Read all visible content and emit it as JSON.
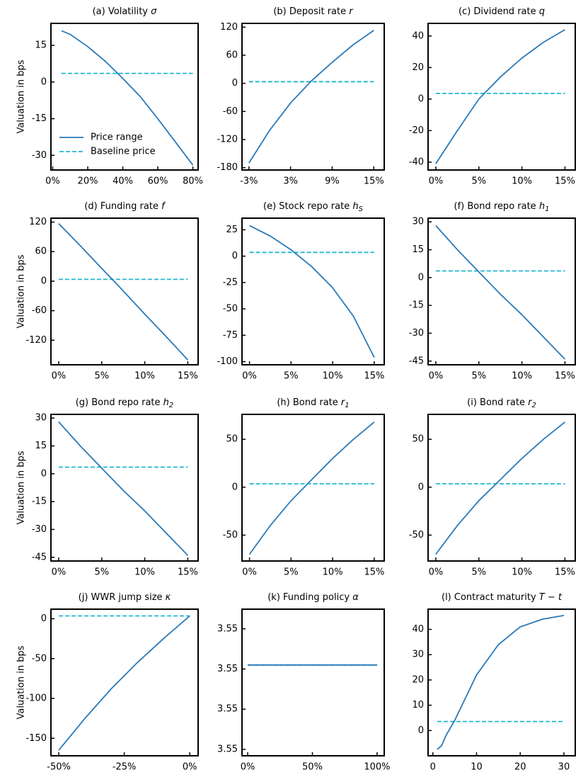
{
  "chart_data": [
    {
      "type": "line",
      "title": "(a) Volatility",
      "symbol": "σ",
      "ylabel": "Valuation in bps",
      "legend": "lower left",
      "x": [
        5,
        10,
        20,
        30,
        40,
        50,
        60,
        70,
        80
      ],
      "xlim": [
        -1,
        83
      ],
      "xticks": [
        {
          "value": 0,
          "label": "0%"
        },
        {
          "value": 20,
          "label": "20%"
        },
        {
          "value": 40,
          "label": "40%"
        },
        {
          "value": 60,
          "label": "60%"
        },
        {
          "value": 80,
          "label": "80%"
        }
      ],
      "ylim": [
        -36,
        24
      ],
      "yticks": [
        15,
        0,
        -15,
        -30
      ],
      "series": [
        {
          "name": "Price range",
          "color": "#2a7ab9",
          "dashed": false,
          "values": [
            21,
            19.5,
            14.5,
            8.5,
            1.5,
            -6,
            -15,
            -24.5,
            -34
          ]
        },
        {
          "name": "Baseline price",
          "color": "#1fb8cf",
          "dashed": true,
          "values": [
            3.55,
            3.55,
            3.55,
            3.55,
            3.55,
            3.55,
            3.55,
            3.55,
            3.55
          ]
        }
      ]
    },
    {
      "type": "line",
      "title": "(b) Deposit rate",
      "symbol": "r",
      "x": [
        -3,
        0,
        3,
        6,
        9,
        12,
        15
      ],
      "xlim": [
        -4,
        16.5
      ],
      "xticks": [
        {
          "value": -3,
          "label": "-3%"
        },
        {
          "value": 3,
          "label": "3%"
        },
        {
          "value": 9,
          "label": "9%"
        },
        {
          "value": 15,
          "label": "15%"
        }
      ],
      "ylim": [
        -185,
        128
      ],
      "yticks": [
        120,
        60,
        0,
        -60,
        -120,
        -180
      ],
      "series": [
        {
          "name": "Price range",
          "color": "#2a7ab9",
          "dashed": false,
          "values": [
            -170,
            -100,
            -42,
            5,
            45,
            82,
            113
          ]
        },
        {
          "name": "Baseline price",
          "color": "#1fb8cf",
          "dashed": true,
          "values": [
            3.55,
            3.55,
            3.55,
            3.55,
            3.55,
            3.55,
            3.55
          ]
        }
      ]
    },
    {
      "type": "line",
      "title": "(c) Dividend rate",
      "symbol": "q",
      "x": [
        0,
        2.5,
        5,
        7.5,
        10,
        12.5,
        15
      ],
      "xlim": [
        -0.9,
        16.2
      ],
      "xticks": [
        {
          "value": 0,
          "label": "0%"
        },
        {
          "value": 5,
          "label": "5%"
        },
        {
          "value": 10,
          "label": "10%"
        },
        {
          "value": 15,
          "label": "15%"
        }
      ],
      "ylim": [
        -45,
        48
      ],
      "yticks": [
        40,
        20,
        0,
        -20,
        -40
      ],
      "series": [
        {
          "name": "Price range",
          "color": "#2a7ab9",
          "dashed": false,
          "values": [
            -41,
            -20,
            0,
            14,
            26,
            36,
            44
          ]
        },
        {
          "name": "Baseline price",
          "color": "#1fb8cf",
          "dashed": true,
          "values": [
            3.55,
            3.55,
            3.55,
            3.55,
            3.55,
            3.55,
            3.55
          ]
        }
      ]
    },
    {
      "type": "line",
      "title": "(d) Funding rate",
      "symbol": "f",
      "ylabel": "Valuation in bps",
      "x": [
        0,
        2.5,
        5,
        7.5,
        10,
        12.5,
        15
      ],
      "xlim": [
        -0.9,
        16.2
      ],
      "xticks": [
        {
          "value": 0,
          "label": "0%"
        },
        {
          "value": 5,
          "label": "5%"
        },
        {
          "value": 10,
          "label": "10%"
        },
        {
          "value": 15,
          "label": "15%"
        }
      ],
      "ylim": [
        -170,
        128
      ],
      "yticks": [
        120,
        60,
        0,
        -60,
        -120
      ],
      "series": [
        {
          "name": "Price range",
          "color": "#2a7ab9",
          "dashed": false,
          "values": [
            117,
            72,
            26,
            -20,
            -67,
            -113,
            -160
          ]
        },
        {
          "name": "Baseline price",
          "color": "#1fb8cf",
          "dashed": true,
          "values": [
            3.55,
            3.55,
            3.55,
            3.55,
            3.55,
            3.55,
            3.55
          ]
        }
      ]
    },
    {
      "type": "line",
      "title": "(e) Stock repo rate",
      "symbol": "h",
      "symbol_sub": "S",
      "x": [
        0,
        2.5,
        5,
        7.5,
        10,
        12.5,
        15
      ],
      "xlim": [
        -0.9,
        16.2
      ],
      "xticks": [
        {
          "value": 0,
          "label": "0%"
        },
        {
          "value": 5,
          "label": "5%"
        },
        {
          "value": 10,
          "label": "10%"
        },
        {
          "value": 15,
          "label": "15%"
        }
      ],
      "ylim": [
        -103,
        36
      ],
      "yticks": [
        25,
        0,
        -25,
        -50,
        -75,
        -100
      ],
      "series": [
        {
          "name": "Price range",
          "color": "#2a7ab9",
          "dashed": false,
          "values": [
            29,
            19,
            6,
            -10,
            -30,
            -57,
            -96
          ]
        },
        {
          "name": "Baseline price",
          "color": "#1fb8cf",
          "dashed": true,
          "values": [
            3.55,
            3.55,
            3.55,
            3.55,
            3.55,
            3.55,
            3.55
          ]
        }
      ]
    },
    {
      "type": "line",
      "title": "(f) Bond repo rate",
      "symbol": "h",
      "symbol_sub": "1",
      "x": [
        0,
        2.5,
        5,
        7.5,
        10,
        12.5,
        15
      ],
      "xlim": [
        -0.9,
        16.2
      ],
      "xticks": [
        {
          "value": 0,
          "label": "0%"
        },
        {
          "value": 5,
          "label": "5%"
        },
        {
          "value": 10,
          "label": "10%"
        },
        {
          "value": 15,
          "label": "15%"
        }
      ],
      "ylim": [
        -47,
        32
      ],
      "yticks": [
        30,
        15,
        0,
        -15,
        -30,
        -45
      ],
      "series": [
        {
          "name": "Price range",
          "color": "#2a7ab9",
          "dashed": false,
          "values": [
            28,
            15,
            3,
            -9,
            -20,
            -32,
            -44
          ]
        },
        {
          "name": "Baseline price",
          "color": "#1fb8cf",
          "dashed": true,
          "values": [
            3.55,
            3.55,
            3.55,
            3.55,
            3.55,
            3.55,
            3.55
          ]
        }
      ]
    },
    {
      "type": "line",
      "title": "(g) Bond repo rate",
      "symbol": "h",
      "symbol_sub": "2",
      "ylabel": "Valuation in bps",
      "x": [
        0,
        2.5,
        5,
        7.5,
        10,
        12.5,
        15
      ],
      "xlim": [
        -0.9,
        16.2
      ],
      "xticks": [
        {
          "value": 0,
          "label": "0%"
        },
        {
          "value": 5,
          "label": "5%"
        },
        {
          "value": 10,
          "label": "10%"
        },
        {
          "value": 15,
          "label": "15%"
        }
      ],
      "ylim": [
        -47,
        32
      ],
      "yticks": [
        30,
        15,
        0,
        -15,
        -30,
        -45
      ],
      "series": [
        {
          "name": "Price range",
          "color": "#2a7ab9",
          "dashed": false,
          "values": [
            28,
            15,
            3,
            -9,
            -20,
            -32,
            -44
          ]
        },
        {
          "name": "Baseline price",
          "color": "#1fb8cf",
          "dashed": true,
          "values": [
            3.55,
            3.55,
            3.55,
            3.55,
            3.55,
            3.55,
            3.55
          ]
        }
      ]
    },
    {
      "type": "line",
      "title": "(h) Bond rate",
      "symbol": "r",
      "symbol_sub": "1",
      "x": [
        0,
        2.5,
        5,
        7.5,
        10,
        12.5,
        15
      ],
      "xlim": [
        -0.9,
        16.2
      ],
      "xticks": [
        {
          "value": 0,
          "label": "0%"
        },
        {
          "value": 5,
          "label": "5%"
        },
        {
          "value": 10,
          "label": "10%"
        },
        {
          "value": 15,
          "label": "15%"
        }
      ],
      "ylim": [
        -77,
        76
      ],
      "yticks": [
        50,
        0,
        -50
      ],
      "series": [
        {
          "name": "Price range",
          "color": "#2a7ab9",
          "dashed": false,
          "values": [
            -70,
            -40,
            -14,
            8,
            30,
            50,
            68
          ]
        },
        {
          "name": "Baseline price",
          "color": "#1fb8cf",
          "dashed": true,
          "values": [
            3.55,
            3.55,
            3.55,
            3.55,
            3.55,
            3.55,
            3.55
          ]
        }
      ]
    },
    {
      "type": "line",
      "title": "(i) Bond rate",
      "symbol": "r",
      "symbol_sub": "2",
      "x": [
        0,
        2.5,
        5,
        7.5,
        10,
        12.5,
        15
      ],
      "xlim": [
        -0.9,
        16.2
      ],
      "xticks": [
        {
          "value": 0,
          "label": "0%"
        },
        {
          "value": 5,
          "label": "5%"
        },
        {
          "value": 10,
          "label": "10%"
        },
        {
          "value": 15,
          "label": "15%"
        }
      ],
      "ylim": [
        -77,
        76
      ],
      "yticks": [
        50,
        0,
        -50
      ],
      "series": [
        {
          "name": "Price range",
          "color": "#2a7ab9",
          "dashed": false,
          "values": [
            -70,
            -40,
            -14,
            8,
            30,
            50,
            68
          ]
        },
        {
          "name": "Baseline price",
          "color": "#1fb8cf",
          "dashed": true,
          "values": [
            3.55,
            3.55,
            3.55,
            3.55,
            3.55,
            3.55,
            3.55
          ]
        }
      ]
    },
    {
      "type": "line",
      "title": "(j) WWR jump size",
      "symbol": "κ",
      "ylabel": "Valuation in bps",
      "x": [
        -50,
        -40,
        -30,
        -20,
        -10,
        0
      ],
      "xlim": [
        -53,
        3.2
      ],
      "xticks": [
        {
          "value": -50,
          "label": "-50%"
        },
        {
          "value": -25,
          "label": "-25%"
        },
        {
          "value": 0,
          "label": "0%"
        }
      ],
      "ylim": [
        -172,
        12
      ],
      "yticks": [
        0,
        -50,
        -100,
        -150
      ],
      "series": [
        {
          "name": "Price range",
          "color": "#2a7ab9",
          "dashed": false,
          "values": [
            -165,
            -125,
            -88,
            -55,
            -25,
            3.55
          ]
        },
        {
          "name": "Baseline price",
          "color": "#1fb8cf",
          "dashed": true,
          "values": [
            3.55,
            3.55,
            3.55,
            3.55,
            3.55,
            3.55
          ]
        }
      ]
    },
    {
      "type": "line",
      "title": "(k) Funding policy",
      "symbol": "α",
      "x": [
        0,
        50,
        100
      ],
      "xlim": [
        -4.4,
        105.5
      ],
      "xticks": [
        {
          "value": 0,
          "label": "0%"
        },
        {
          "value": 50,
          "label": "50%"
        },
        {
          "value": 100,
          "label": "100%"
        }
      ],
      "ylim": [
        3.55134,
        3.55499
      ],
      "yticks": [
        {
          "value": 3.5545,
          "label": "3.55"
        },
        {
          "value": 3.5535,
          "label": "3.55"
        },
        {
          "value": 3.5525,
          "label": "3.55"
        },
        {
          "value": 3.5515,
          "label": "3.55"
        }
      ],
      "series": [
        {
          "name": "Price range",
          "color": "#2a7ab9",
          "dashed": false,
          "values": [
            3.5536,
            3.5536,
            3.5536
          ]
        },
        {
          "name": "Baseline price",
          "color": "#1fb8cf",
          "dashed": true,
          "values": [
            3.5536,
            3.5536,
            3.5536
          ]
        }
      ]
    },
    {
      "type": "line",
      "title": "(l) Contract maturity",
      "symbol": "T − t",
      "x": [
        1,
        2,
        3,
        5,
        7.5,
        10,
        15,
        20,
        25,
        30
      ],
      "xlim": [
        -1.1,
        32.6
      ],
      "xticks": [
        0,
        10,
        20,
        30
      ],
      "ylim": [
        -10,
        48
      ],
      "yticks": [
        40,
        30,
        20,
        10,
        0
      ],
      "series": [
        {
          "name": "Price range",
          "color": "#2a7ab9",
          "dashed": false,
          "values": [
            -7.5,
            -6,
            -2,
            4,
            13,
            22,
            34,
            41,
            44,
            45.5
          ]
        },
        {
          "name": "Baseline price",
          "color": "#1fb8cf",
          "dashed": true,
          "values": [
            3.55,
            3.55,
            3.55,
            3.55,
            3.55,
            3.55,
            3.55,
            3.55,
            3.55,
            3.55
          ]
        }
      ]
    }
  ]
}
